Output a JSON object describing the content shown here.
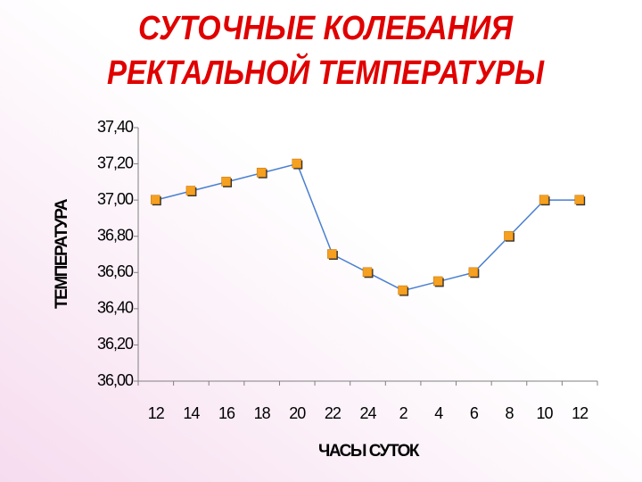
{
  "chart_data": {
    "type": "line",
    "title": [
      "СУТОЧНЫЕ КОЛЕБАНИЯ",
      "РЕКТАЛЬНОЙ ТЕМПЕРАТУРЫ"
    ],
    "x_label": "ЧАСЫ СУТОК",
    "y_label": "ТЕМПЕРАТУРА",
    "categories": [
      "12",
      "14",
      "16",
      "18",
      "20",
      "22",
      "24",
      "2",
      "4",
      "6",
      "8",
      "10",
      "12"
    ],
    "values": [
      37.0,
      37.05,
      37.1,
      37.15,
      37.2,
      36.7,
      36.6,
      36.5,
      36.55,
      36.6,
      36.8,
      37.0,
      37.0
    ],
    "color": "#4a7fd0",
    "marker_color": "#f5a020",
    "ylim": [
      36.0,
      37.4
    ],
    "yticks": [
      {
        "value": 36.0,
        "label": "36,00"
      },
      {
        "value": 36.2,
        "label": "36,20"
      },
      {
        "value": 36.4,
        "label": "36,40"
      },
      {
        "value": 36.6,
        "label": "36,60"
      },
      {
        "value": 36.8,
        "label": "36,80"
      },
      {
        "value": 37.0,
        "label": "37,00"
      },
      {
        "value": 37.2,
        "label": "37,20"
      },
      {
        "value": 37.4,
        "label": "37,40"
      }
    ]
  }
}
